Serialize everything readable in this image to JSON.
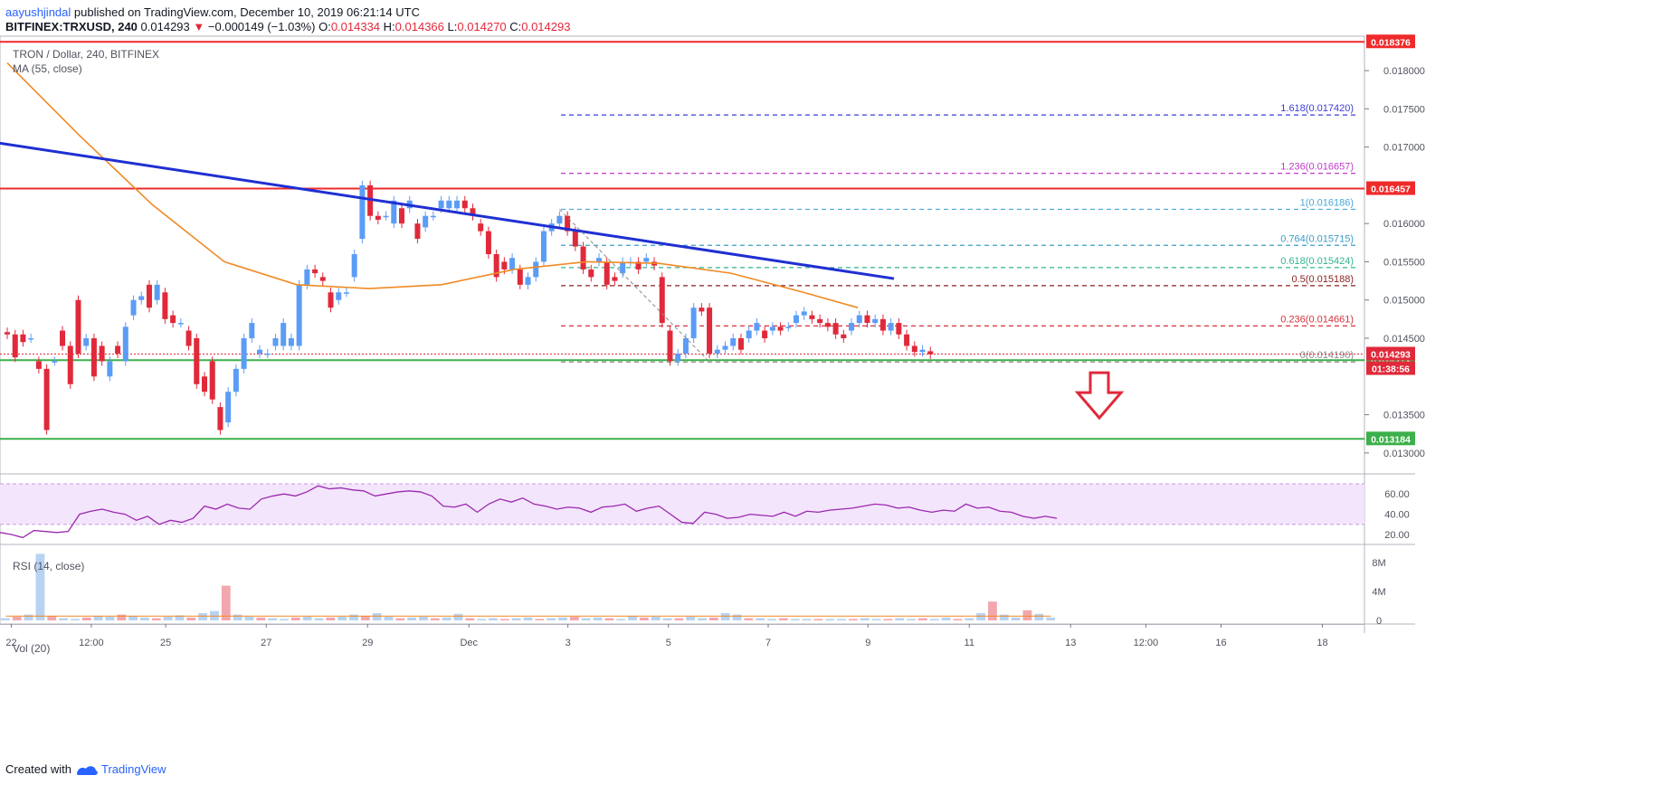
{
  "header": {
    "author": "aayushjindal",
    "published": "published on TradingView.com, December 10, 2019 06:21:14 UTC",
    "symbol_line": "BITFINEX:TRXUSD, 240",
    "last": "0.014293",
    "change_arrow": "▼",
    "change": "−0.000149 (−1.03%)",
    "ohlc": [
      {
        "label": "O:",
        "value": "0.014334"
      },
      {
        "label": "H:",
        "value": "0.014366"
      },
      {
        "label": "L:",
        "value": "0.014270"
      },
      {
        "label": "C:",
        "value": "0.014293"
      }
    ]
  },
  "footer": {
    "created_with": "Created with",
    "brand": "TradingView"
  },
  "colors": {
    "up": "#5b9cf6",
    "down": "#e0293a",
    "ma": "#f08a24",
    "trendline": "#1f2fd2",
    "resistance": "#ef2a2a",
    "support": "#3cb04a",
    "rsi": "#9c27b0",
    "rsi_band": "#f3e5fb"
  },
  "chart_data": {
    "type": "candlestick",
    "title": "TRON / Dollar, 240, BITFINEX",
    "indicator_label": "MA (55, close)",
    "x_labels": [
      "22",
      "12:00",
      "25",
      "27",
      "29",
      "Dec",
      "3",
      "5",
      "7",
      "9",
      "11",
      "13",
      "12:00",
      "16",
      "18"
    ],
    "y_ticks": [
      "0.018000",
      "0.017500",
      "0.017000",
      "0.016000",
      "0.015500",
      "0.015000",
      "0.014500",
      "0.013500",
      "0.013000"
    ],
    "y_range": [
      0.01275,
      0.01845
    ],
    "candles": [
      [
        0.01458,
        0.01455
      ],
      [
        0.01455,
        0.01425
      ],
      [
        0.01455,
        0.01445
      ],
      [
        0.0145,
        0.0145
      ],
      [
        0.0142,
        0.0141
      ],
      [
        0.0141,
        0.0133
      ],
      [
        0.0142,
        0.0142
      ],
      [
        0.0146,
        0.0144
      ],
      [
        0.0144,
        0.0139
      ],
      [
        0.015,
        0.0143
      ],
      [
        0.0144,
        0.0145
      ],
      [
        0.0145,
        0.014
      ],
      [
        0.0144,
        0.0142
      ],
      [
        0.014,
        0.0142
      ],
      [
        0.0144,
        0.0143
      ],
      [
        0.0142,
        0.01465
      ],
      [
        0.0148,
        0.015
      ],
      [
        0.015,
        0.01505
      ],
      [
        0.0152,
        0.0149
      ],
      [
        0.015,
        0.0152
      ],
      [
        0.0151,
        0.01475
      ],
      [
        0.0148,
        0.0147
      ],
      [
        0.0147,
        0.0147
      ],
      [
        0.0146,
        0.0144
      ],
      [
        0.0145,
        0.0139
      ],
      [
        0.014,
        0.0138
      ],
      [
        0.0142,
        0.0137
      ],
      [
        0.0136,
        0.0133
      ],
      [
        0.0134,
        0.0138
      ],
      [
        0.0138,
        0.0141
      ],
      [
        0.0141,
        0.0145
      ],
      [
        0.0145,
        0.0147
      ],
      [
        0.0143,
        0.01435
      ],
      [
        0.0143,
        0.0143
      ],
      [
        0.0144,
        0.0145
      ],
      [
        0.0144,
        0.0147
      ],
      [
        0.0144,
        0.0145
      ],
      [
        0.0144,
        0.0152
      ],
      [
        0.0152,
        0.0154
      ],
      [
        0.0154,
        0.01535
      ],
      [
        0.0153,
        0.01525
      ],
      [
        0.0151,
        0.0149
      ],
      [
        0.015,
        0.0151
      ],
      [
        0.0151,
        0.0151
      ],
      [
        0.0153,
        0.0156
      ],
      [
        0.0158,
        0.0165
      ],
      [
        0.0165,
        0.0161
      ],
      [
        0.0161,
        0.01605
      ],
      [
        0.0161,
        0.0161
      ],
      [
        0.016,
        0.0163
      ],
      [
        0.0162,
        0.016
      ],
      [
        0.0162,
        0.0163
      ],
      [
        0.016,
        0.0158
      ],
      [
        0.01595,
        0.0161
      ],
      [
        0.0161,
        0.0161
      ],
      [
        0.0162,
        0.0163
      ],
      [
        0.0162,
        0.0163
      ],
      [
        0.0162,
        0.0163
      ],
      [
        0.0163,
        0.0162
      ],
      [
        0.0162,
        0.0161
      ],
      [
        0.016,
        0.0159
      ],
      [
        0.0159,
        0.0156
      ],
      [
        0.0156,
        0.0153
      ],
      [
        0.0155,
        0.0154
      ],
      [
        0.0154,
        0.01555
      ],
      [
        0.0154,
        0.0152
      ],
      [
        0.0152,
        0.0153
      ],
      [
        0.0153,
        0.0155
      ],
      [
        0.0155,
        0.0159
      ],
      [
        0.0159,
        0.016
      ],
      [
        0.016,
        0.0161
      ],
      [
        0.0161,
        0.0159
      ],
      [
        0.0159,
        0.0157
      ],
      [
        0.0157,
        0.0154
      ],
      [
        0.0154,
        0.0153
      ],
      [
        0.0155,
        0.01555
      ],
      [
        0.0155,
        0.0152
      ],
      [
        0.0153,
        0.01525
      ],
      [
        0.01535,
        0.0155
      ],
      [
        0.0155,
        0.0155
      ],
      [
        0.0155,
        0.0154
      ],
      [
        0.0155,
        0.01555
      ],
      [
        0.0155,
        0.01545
      ],
      [
        0.0153,
        0.0147
      ],
      [
        0.0146,
        0.0142
      ],
      [
        0.0142,
        0.0143
      ],
      [
        0.0143,
        0.0145
      ],
      [
        0.0145,
        0.0149
      ],
      [
        0.0149,
        0.01485
      ],
      [
        0.0149,
        0.0143
      ],
      [
        0.0143,
        0.01435
      ],
      [
        0.01435,
        0.0144
      ],
      [
        0.0144,
        0.0145
      ],
      [
        0.0145,
        0.01435
      ],
      [
        0.0145,
        0.0146
      ],
      [
        0.0146,
        0.0147
      ],
      [
        0.0146,
        0.0145
      ],
      [
        0.0146,
        0.01465
      ],
      [
        0.01465,
        0.0146
      ],
      [
        0.01465,
        0.01465
      ],
      [
        0.0147,
        0.0148
      ],
      [
        0.0148,
        0.01485
      ],
      [
        0.0148,
        0.01475
      ],
      [
        0.01475,
        0.0147
      ],
      [
        0.0147,
        0.01465
      ],
      [
        0.0147,
        0.01455
      ],
      [
        0.01455,
        0.0145
      ],
      [
        0.0146,
        0.0147
      ],
      [
        0.0147,
        0.0148
      ],
      [
        0.0148,
        0.0147
      ],
      [
        0.0147,
        0.01475
      ],
      [
        0.01475,
        0.0146
      ],
      [
        0.0146,
        0.0147
      ],
      [
        0.0147,
        0.01455
      ],
      [
        0.01455,
        0.0144
      ],
      [
        0.0144,
        0.01432
      ],
      [
        0.01432,
        0.01435
      ],
      [
        0.01433,
        0.01429
      ]
    ],
    "ma55": [
      [
        0,
        0.0181
      ],
      [
        40,
        0.01715
      ],
      [
        80,
        0.01625
      ],
      [
        120,
        0.0155
      ],
      [
        160,
        0.0152
      ],
      [
        200,
        0.01515
      ],
      [
        240,
        0.0152
      ],
      [
        280,
        0.0154
      ],
      [
        320,
        0.0155
      ],
      [
        360,
        0.01548
      ],
      [
        400,
        0.01535
      ],
      [
        440,
        0.0151
      ],
      [
        470,
        0.0149
      ]
    ],
    "trendline": {
      "from": [
        0,
        0.01705
      ],
      "to": [
        490,
        0.01528
      ]
    },
    "horizontal_levels": [
      {
        "value": 0.018376,
        "label": "0.018376",
        "kind": "resistance"
      },
      {
        "value": 0.016457,
        "label": "0.016457",
        "kind": "resistance"
      },
      {
        "value": 0.014213,
        "label": "0.014213",
        "kind": "support"
      },
      {
        "value": 0.013184,
        "label": "0.013184",
        "kind": "support"
      }
    ],
    "price_tags": [
      {
        "value": 0.014293,
        "label": "0.014293",
        "color": "#e0293a"
      },
      {
        "value": 0.01419,
        "label": "01:38:56",
        "color": "#e0293a"
      }
    ],
    "fib_levels": [
      {
        "ratio": "1.618",
        "value": 0.01742,
        "label": "1.618(0.017420)",
        "color": "#3d3dd6"
      },
      {
        "ratio": "1.236",
        "value": 0.016657,
        "label": "1.236(0.016657)",
        "color": "#c039c9"
      },
      {
        "ratio": "1",
        "value": 0.016186,
        "label": "1(0.016186)",
        "color": "#4aa8d8"
      },
      {
        "ratio": "0.764",
        "value": 0.015715,
        "label": "0.764(0.015715)",
        "color": "#3c9dc4"
      },
      {
        "ratio": "0.618",
        "value": 0.015424,
        "label": "0.618(0.015424)",
        "color": "#33b391"
      },
      {
        "ratio": "0.5",
        "value": 0.015188,
        "label": "0.5(0.015188)",
        "color": "#8a1f1f"
      },
      {
        "ratio": "0.236",
        "value": 0.014661,
        "label": "0.236(0.014661)",
        "color": "#d9303a"
      },
      {
        "ratio": "0",
        "value": 0.01419,
        "label": "0(0.014190)",
        "color": "#8a8a8a"
      }
    ],
    "rsi": {
      "label": "RSI (14, close)",
      "ticks": [
        "60.00",
        "40.00",
        "20.00"
      ],
      "range": [
        12,
        78
      ],
      "band": [
        30,
        70
      ],
      "values": [
        22,
        20,
        17,
        24,
        23,
        22,
        23,
        40,
        43,
        45,
        42,
        40,
        34,
        38,
        30,
        34,
        32,
        36,
        48,
        45,
        50,
        46,
        45,
        55,
        58,
        60,
        58,
        62,
        68,
        65,
        66,
        64,
        63,
        58,
        60,
        62,
        63,
        62,
        58,
        48,
        47,
        50,
        42,
        50,
        55,
        52,
        56,
        50,
        48,
        45,
        47,
        46,
        42,
        47,
        48,
        50,
        43,
        46,
        48,
        40,
        32,
        31,
        42,
        40,
        36,
        37,
        40,
        39,
        38,
        42,
        38,
        43,
        42,
        44,
        45,
        46,
        48,
        50,
        49,
        46,
        47,
        44,
        42,
        44,
        43,
        50,
        46,
        47,
        43,
        42,
        38,
        36,
        38,
        36
      ]
    },
    "volume": {
      "label": "Vol (20)",
      "ticks": [
        "8M",
        "4M",
        "0"
      ],
      "max": 9.5,
      "values": [
        0.3,
        0.5,
        0.8,
        9.2,
        0.6,
        0.3,
        0.2,
        0.4,
        0.6,
        0.5,
        0.8,
        0.6,
        0.4,
        0.3,
        0.5,
        0.7,
        0.4,
        1.0,
        1.3,
        4.8,
        0.8,
        0.5,
        0.4,
        0.3,
        0.2,
        0.4,
        0.5,
        0.3,
        0.4,
        0.5,
        0.8,
        0.6,
        1.0,
        0.5,
        0.3,
        0.4,
        0.5,
        0.3,
        0.4,
        0.9,
        0.3,
        0.2,
        0.3,
        0.2,
        0.3,
        0.4,
        0.2,
        0.3,
        0.4,
        0.5,
        0.3,
        0.4,
        0.3,
        0.2,
        0.6,
        0.4,
        0.5,
        0.3,
        0.3,
        0.5,
        0.3,
        0.4,
        1.0,
        0.8,
        0.3,
        0.3,
        0.2,
        0.3,
        0.2,
        0.2,
        0.2,
        0.2,
        0.2,
        0.2,
        0.3,
        0.2,
        0.2,
        0.3,
        0.2,
        0.3,
        0.2,
        0.4,
        0.2,
        0.3,
        1.0,
        2.6,
        0.8,
        0.4,
        1.4,
        0.9,
        0.4
      ]
    }
  }
}
